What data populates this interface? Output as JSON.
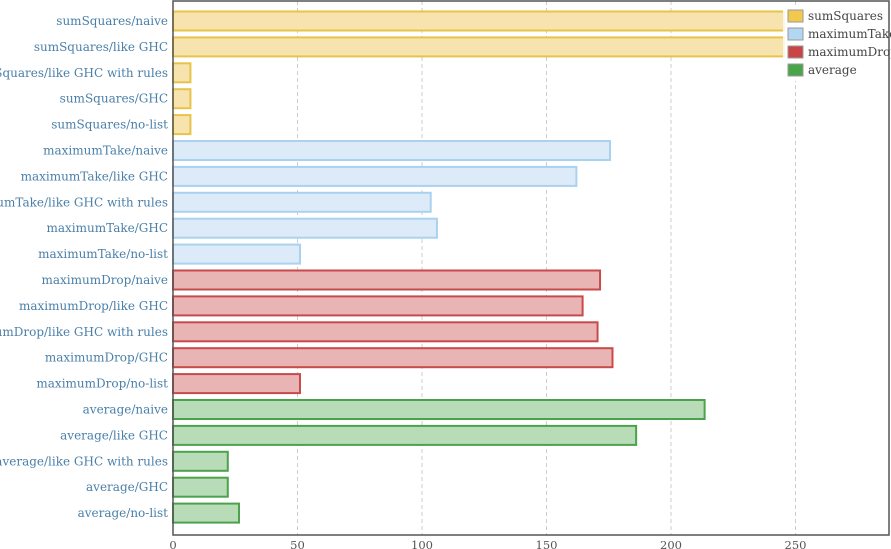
{
  "chart_data": {
    "type": "bar",
    "orientation": "horizontal",
    "xlim": [
      0,
      288
    ],
    "x_ticks": [
      0,
      50,
      100,
      150,
      200,
      250
    ],
    "grid": true,
    "legend_position": "top-right",
    "series": [
      {
        "name": "sumSquares",
        "color": "#e8c34a",
        "fill": "#f7e3ad",
        "legend_fill": "#f2c84d"
      },
      {
        "name": "maximumTake",
        "color": "#a9d2f0",
        "fill": "#ddebf8",
        "legend_fill": "#b3d6f2"
      },
      {
        "name": "maximumDrop",
        "color": "#c94a4a",
        "fill": "#e8b4b4",
        "legend_fill": "#c94444"
      },
      {
        "name": "average",
        "color": "#4ca24c",
        "fill": "#b8dcb8",
        "legend_fill": "#4aa44a"
      }
    ],
    "bars": [
      {
        "label": "sumSquares/naive",
        "series": 0,
        "value": 285
      },
      {
        "label": "sumSquares/like GHC",
        "series": 0,
        "value": 285
      },
      {
        "label": "sumSquares/like GHC with rules",
        "series": 0,
        "value": 7
      },
      {
        "label": "sumSquares/GHC",
        "series": 0,
        "value": 7
      },
      {
        "label": "sumSquares/no-list",
        "series": 0,
        "value": 7
      },
      {
        "label": "maximumTake/naive",
        "series": 1,
        "value": 175.5
      },
      {
        "label": "maximumTake/like GHC",
        "series": 1,
        "value": 162
      },
      {
        "label": "maximumTake/like GHC with rules",
        "series": 1,
        "value": 103.5
      },
      {
        "label": "maximumTake/GHC",
        "series": 1,
        "value": 106
      },
      {
        "label": "maximumTake/no-list",
        "series": 1,
        "value": 51
      },
      {
        "label": "maximumDrop/naive",
        "series": 2,
        "value": 171.5
      },
      {
        "label": "maximumDrop/like GHC",
        "series": 2,
        "value": 164.5
      },
      {
        "label": "maximumDrop/like GHC with rules",
        "series": 2,
        "value": 170.5
      },
      {
        "label": "maximumDrop/GHC",
        "series": 2,
        "value": 176.5
      },
      {
        "label": "maximumDrop/no-list",
        "series": 2,
        "value": 51
      },
      {
        "label": "average/naive",
        "series": 3,
        "value": 213.5
      },
      {
        "label": "average/like GHC",
        "series": 3,
        "value": 186
      },
      {
        "label": "average/like GHC with rules",
        "series": 3,
        "value": 22
      },
      {
        "label": "average/GHC",
        "series": 3,
        "value": 22
      },
      {
        "label": "average/no-list",
        "series": 3,
        "value": 26.5
      }
    ]
  }
}
